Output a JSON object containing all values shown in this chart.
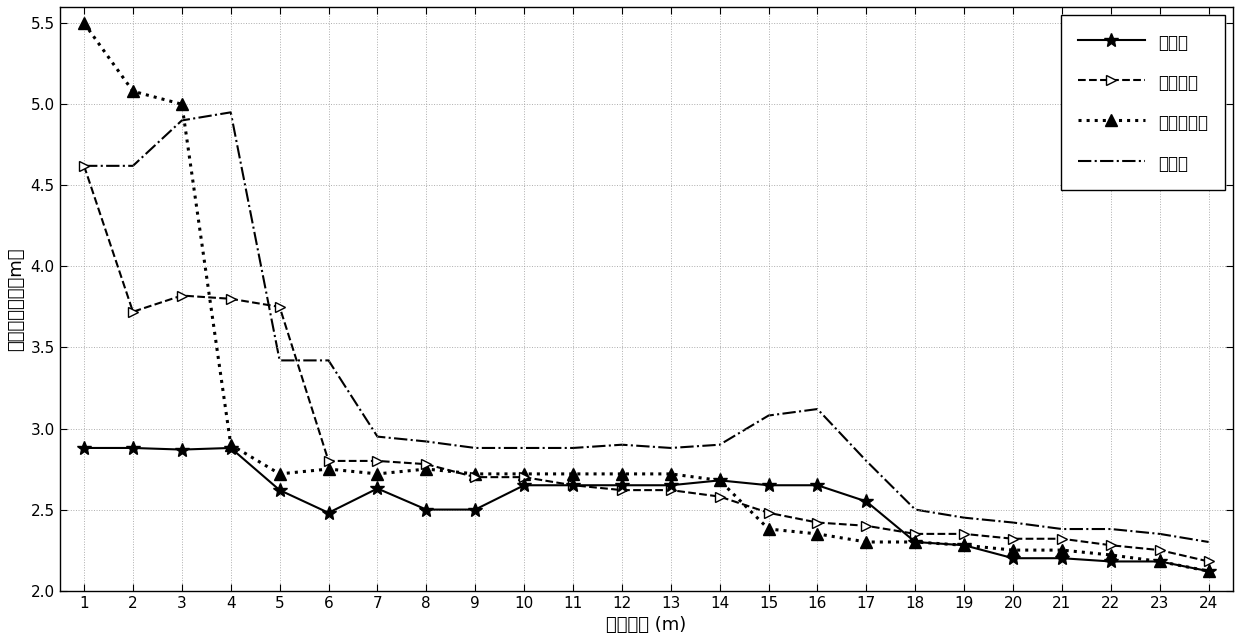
{
  "x": [
    1,
    2,
    3,
    4,
    5,
    6,
    7,
    8,
    9,
    10,
    11,
    12,
    13,
    14,
    15,
    16,
    17,
    18,
    19,
    20,
    21,
    22,
    23,
    24
  ],
  "series": {
    "ben_faming": [
      2.88,
      2.88,
      2.87,
      2.88,
      2.62,
      2.48,
      2.63,
      2.5,
      2.5,
      2.65,
      2.65,
      2.65,
      2.65,
      2.68,
      2.65,
      2.65,
      2.55,
      2.3,
      2.28,
      2.2,
      2.2,
      2.18,
      2.18,
      2.12
    ],
    "xinxi_zengy": [
      4.62,
      3.72,
      3.82,
      3.8,
      3.75,
      2.8,
      2.8,
      2.78,
      2.7,
      2.7,
      2.65,
      2.62,
      2.62,
      2.58,
      2.48,
      2.42,
      2.4,
      2.35,
      2.35,
      2.32,
      2.32,
      2.28,
      2.25,
      2.18
    ],
    "zui_xiao": [
      5.5,
      5.08,
      5.0,
      2.9,
      2.72,
      2.75,
      2.72,
      2.75,
      2.72,
      2.72,
      2.72,
      2.72,
      2.72,
      2.68,
      2.38,
      2.35,
      2.3,
      2.3,
      2.28,
      2.25,
      2.25,
      2.22,
      2.18,
      2.12
    ],
    "hu_xinxi": [
      4.62,
      4.62,
      4.9,
      4.95,
      3.42,
      3.42,
      2.95,
      2.92,
      2.88,
      2.88,
      2.88,
      2.9,
      2.88,
      2.9,
      3.08,
      3.12,
      2.8,
      2.5,
      2.45,
      2.42,
      2.38,
      2.38,
      2.35,
      2.3
    ]
  },
  "xlabel": "定位误差 (m)",
  "ylabel": "整体定位误差（m）",
  "xlim_low": 0.5,
  "xlim_high": 24.5,
  "ylim": [
    2.0,
    5.6
  ],
  "yticks": [
    2.0,
    2.5,
    3.0,
    3.5,
    4.0,
    4.5,
    5.0,
    5.5
  ],
  "xticks": [
    1,
    2,
    3,
    4,
    5,
    6,
    7,
    8,
    9,
    10,
    11,
    12,
    13,
    14,
    15,
    16,
    17,
    18,
    19,
    20,
    21,
    22,
    23,
    24
  ],
  "legend_labels": [
    "本发明",
    "信息增益",
    "最小标准差",
    "互信息"
  ],
  "background_color": "#ffffff",
  "fontsize_label": 13,
  "fontsize_tick": 11,
  "fontsize_legend": 12
}
